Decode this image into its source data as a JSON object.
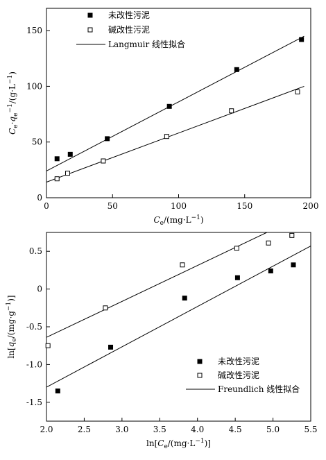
{
  "chart_data": [
    {
      "type": "scatter",
      "title": "",
      "xlabel": "C_e/(mg·L^-1)",
      "ylabel": "C_e·q_e^-1/(g·L^-1)",
      "xlabel_parts": {
        "prefix": "C",
        "sub": "e",
        "suffix": "/(mg·L",
        "sup": "−1",
        "end": ")"
      },
      "ylabel_parts": {
        "a": "C",
        "a_sub": "e",
        "dot": "·q",
        "b_sub": "e",
        "b_sup": "−1",
        "end": "/(g·L",
        "end_sup": "−1",
        "close": ")"
      },
      "xlim": [
        0,
        200
      ],
      "ylim": [
        0,
        170
      ],
      "xticks": [
        "0",
        "50",
        "100",
        "150",
        "200"
      ],
      "yticks": [
        "0",
        "50",
        "100",
        "150"
      ],
      "xtick_values": [
        0,
        50,
        100,
        150,
        200
      ],
      "ytick_values": [
        0,
        50,
        100,
        150
      ],
      "grid": false,
      "legend_position": "top-left",
      "series": [
        {
          "name": "未改性污泥",
          "marker": "filled-square",
          "x": [
            8,
            18,
            46,
            93,
            144,
            193
          ],
          "y": [
            35,
            39,
            53,
            82,
            115,
            142
          ]
        },
        {
          "name": "碱改性污泥",
          "marker": "open-square",
          "x": [
            8,
            16,
            43,
            91,
            140,
            190
          ],
          "y": [
            17,
            22,
            33,
            55,
            78,
            95
          ]
        }
      ],
      "fit_lines": [
        {
          "name": "Langmuir 线性拟合",
          "x": [
            0,
            195
          ],
          "y": [
            24,
            145
          ]
        },
        {
          "name": "",
          "x": [
            0,
            195
          ],
          "y": [
            14,
            100
          ]
        }
      ],
      "legend": [
        "未改性污泥",
        "碱改性污泥",
        "Langmuir 线性拟合"
      ]
    },
    {
      "type": "scatter",
      "title": "",
      "xlabel": "ln[C_e/(mg·L^-1)]",
      "ylabel": "ln[q_e/(mg·g^-1)]",
      "xlabel_parts": {
        "prefix": "ln[C",
        "sub": "e",
        "suffix": "/(mg·L",
        "sup": "−1",
        "end": ")]"
      },
      "ylabel_parts": {
        "a": "ln[q",
        "a_sub": "e",
        "end": "/(mg·g",
        "end_sup": "−1",
        "close": ")]"
      },
      "xlim": [
        2.0,
        5.5
      ],
      "ylim": [
        -1.75,
        0.75
      ],
      "xticks": [
        "2.0",
        "2.5",
        "3.0",
        "3.5",
        "4.0",
        "4.5",
        "5.0",
        "5.5"
      ],
      "yticks": [
        "0.5",
        "0",
        "-0.5",
        "-1.0",
        "-1.5"
      ],
      "xtick_values": [
        2.0,
        2.5,
        3.0,
        3.5,
        4.0,
        4.5,
        5.0,
        5.5
      ],
      "ytick_values": [
        0.5,
        0,
        -0.5,
        -1.0,
        -1.5
      ],
      "grid": false,
      "legend_position": "bottom-right",
      "series": [
        {
          "name": "未改性污泥",
          "marker": "filled-square",
          "x": [
            2.15,
            2.85,
            3.83,
            4.53,
            4.97,
            5.27
          ],
          "y": [
            -1.35,
            -0.77,
            -0.12,
            0.15,
            0.24,
            0.32
          ]
        },
        {
          "name": "碱改性污泥",
          "marker": "open-square",
          "x": [
            2.02,
            2.78,
            3.8,
            4.52,
            4.94,
            5.25
          ],
          "y": [
            -0.75,
            -0.25,
            0.32,
            0.54,
            0.61,
            0.71
          ]
        }
      ],
      "fit_lines": [
        {
          "name": "Freundlich 线性拟合",
          "x": [
            2.0,
            5.5
          ],
          "y": [
            -1.3,
            0.57
          ]
        },
        {
          "name": "",
          "x": [
            2.0,
            4.92
          ],
          "y": [
            -0.64,
            0.75
          ]
        }
      ],
      "legend": [
        "未改性污泥",
        "碱改性污泥",
        "Freundlich 线性拟合"
      ]
    }
  ]
}
